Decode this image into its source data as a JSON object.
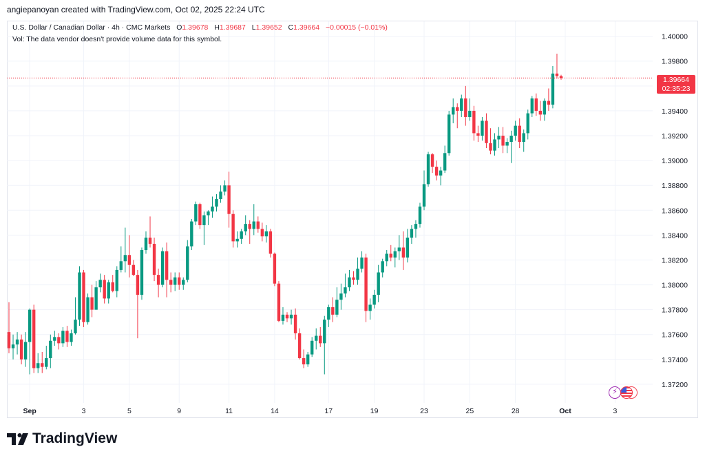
{
  "attribution": "angiepanoyan created with TradingView.com, Oct 02, 2025 22:24 UTC",
  "legend": {
    "symbol": "U.S. Dollar / Canadian Dollar · 4h · CMC Markets",
    "open_label": "O",
    "open": "1.39678",
    "high_label": "H",
    "high": "1.39687",
    "low_label": "L",
    "low": "1.39652",
    "close_label": "C",
    "close": "1.39664",
    "change": "−0.00015 (−0.01%)"
  },
  "volume_note": "Vol: The data vendor doesn't provide volume data for this symbol.",
  "price_badge": {
    "price": "1.39664",
    "countdown": "02:35:23"
  },
  "brand": {
    "logo_text": "TradingView"
  },
  "colors": {
    "up": "#089981",
    "down": "#f23645",
    "grid": "#f0f3fa",
    "last_price_line": "#f23645"
  },
  "icons": [
    "economic-event-icon",
    "us-flag-icon",
    "canada-flag-icon"
  ],
  "chart_data": {
    "type": "candlestick",
    "symbol": "USDCAD",
    "timeframe": "4h",
    "y_ticks": [
      "1.40000",
      "1.39800",
      "1.39600",
      "1.39400",
      "1.39200",
      "1.39000",
      "1.38800",
      "1.38600",
      "1.38400",
      "1.38200",
      "1.38000",
      "1.37800",
      "1.37600",
      "1.37400",
      "1.37200"
    ],
    "ylim": [
      1.3705,
      1.4012
    ],
    "x_ticks": [
      {
        "label": "Sep",
        "index": 5
      },
      {
        "label": "3",
        "index": 18
      },
      {
        "label": "5",
        "index": 29
      },
      {
        "label": "9",
        "index": 41
      },
      {
        "label": "11",
        "index": 53
      },
      {
        "label": "14",
        "index": 64
      },
      {
        "label": "17",
        "index": 77
      },
      {
        "label": "19",
        "index": 88
      },
      {
        "label": "23",
        "index": 100
      },
      {
        "label": "25",
        "index": 111
      },
      {
        "label": "28",
        "index": 122
      },
      {
        "label": "Oct",
        "index": 134
      },
      {
        "label": "3",
        "index": 146
      }
    ],
    "last_price": 1.39664,
    "candles": [
      [
        1.3762,
        1.3786,
        1.3745,
        1.3749
      ],
      [
        1.3749,
        1.376,
        1.374,
        1.3752
      ],
      [
        1.3752,
        1.3762,
        1.3744,
        1.3756
      ],
      [
        1.3756,
        1.376,
        1.3736,
        1.374
      ],
      [
        1.374,
        1.3762,
        1.3734,
        1.3754
      ],
      [
        1.3754,
        1.3781,
        1.3728,
        1.378
      ],
      [
        1.378,
        1.3784,
        1.3729,
        1.3733
      ],
      [
        1.3733,
        1.3745,
        1.3729,
        1.3737
      ],
      [
        1.3737,
        1.3746,
        1.3729,
        1.3734
      ],
      [
        1.3734,
        1.3751,
        1.3732,
        1.3741
      ],
      [
        1.3741,
        1.376,
        1.3733,
        1.3755
      ],
      [
        1.3755,
        1.3763,
        1.3751,
        1.3758
      ],
      [
        1.3758,
        1.3761,
        1.3748,
        1.3753
      ],
      [
        1.3753,
        1.3766,
        1.375,
        1.3763
      ],
      [
        1.3763,
        1.3767,
        1.375,
        1.3754
      ],
      [
        1.3754,
        1.3764,
        1.3751,
        1.3761
      ],
      [
        1.3761,
        1.379,
        1.376,
        1.3772
      ],
      [
        1.3772,
        1.3815,
        1.3767,
        1.381
      ],
      [
        1.381,
        1.3812,
        1.3766,
        1.377
      ],
      [
        1.377,
        1.3793,
        1.3768,
        1.379
      ],
      [
        1.379,
        1.38,
        1.3774,
        1.378
      ],
      [
        1.378,
        1.3803,
        1.378,
        1.3798
      ],
      [
        1.3798,
        1.3809,
        1.3794,
        1.3804
      ],
      [
        1.3804,
        1.3808,
        1.3785,
        1.3789
      ],
      [
        1.3789,
        1.3804,
        1.3785,
        1.3802
      ],
      [
        1.3802,
        1.3808,
        1.3794,
        1.3795
      ],
      [
        1.3795,
        1.3815,
        1.379,
        1.3812
      ],
      [
        1.3812,
        1.3831,
        1.381,
        1.3819
      ],
      [
        1.3819,
        1.3846,
        1.381,
        1.3824
      ],
      [
        1.3824,
        1.384,
        1.3806,
        1.3816
      ],
      [
        1.3816,
        1.382,
        1.3807,
        1.3808
      ],
      [
        1.3808,
        1.3812,
        1.3757,
        1.3792
      ],
      [
        1.3792,
        1.383,
        1.3788,
        1.3828
      ],
      [
        1.3828,
        1.3843,
        1.3825,
        1.3838
      ],
      [
        1.3838,
        1.3855,
        1.383,
        1.3833
      ],
      [
        1.3833,
        1.3838,
        1.3803,
        1.3808
      ],
      [
        1.3808,
        1.3813,
        1.379,
        1.38
      ],
      [
        1.38,
        1.383,
        1.3798,
        1.3827
      ],
      [
        1.3827,
        1.3834,
        1.379,
        1.3804
      ],
      [
        1.3804,
        1.381,
        1.3794,
        1.38
      ],
      [
        1.38,
        1.381,
        1.3795,
        1.3806
      ],
      [
        1.3806,
        1.381,
        1.3796,
        1.38
      ],
      [
        1.38,
        1.3806,
        1.3796,
        1.3804
      ],
      [
        1.3804,
        1.3836,
        1.3802,
        1.3831
      ],
      [
        1.3831,
        1.3853,
        1.3828,
        1.3851
      ],
      [
        1.3851,
        1.3867,
        1.3848,
        1.3865
      ],
      [
        1.3865,
        1.3866,
        1.3845,
        1.3848
      ],
      [
        1.3848,
        1.3859,
        1.3832,
        1.3856
      ],
      [
        1.3856,
        1.386,
        1.3848,
        1.3859
      ],
      [
        1.3859,
        1.3871,
        1.3854,
        1.3863
      ],
      [
        1.3863,
        1.3873,
        1.3859,
        1.3869
      ],
      [
        1.3869,
        1.388,
        1.3866,
        1.3875
      ],
      [
        1.3875,
        1.3884,
        1.3872,
        1.388
      ],
      [
        1.388,
        1.3891,
        1.3846,
        1.3857
      ],
      [
        1.3857,
        1.386,
        1.383,
        1.3835
      ],
      [
        1.3835,
        1.3843,
        1.383,
        1.3837
      ],
      [
        1.3837,
        1.3845,
        1.3833,
        1.3843
      ],
      [
        1.3843,
        1.3856,
        1.384,
        1.3849
      ],
      [
        1.3849,
        1.3852,
        1.3833,
        1.3845
      ],
      [
        1.3845,
        1.3865,
        1.384,
        1.3851
      ],
      [
        1.3851,
        1.3855,
        1.3842,
        1.3845
      ],
      [
        1.3845,
        1.385,
        1.3835,
        1.3839
      ],
      [
        1.3839,
        1.3848,
        1.3834,
        1.3843
      ],
      [
        1.3843,
        1.3845,
        1.3822,
        1.3825
      ],
      [
        1.3825,
        1.3826,
        1.3799,
        1.3801
      ],
      [
        1.3801,
        1.3803,
        1.377,
        1.3771
      ],
      [
        1.3771,
        1.3782,
        1.3768,
        1.3776
      ],
      [
        1.3776,
        1.3778,
        1.377,
        1.3773
      ],
      [
        1.3773,
        1.378,
        1.3768,
        1.3776
      ],
      [
        1.3776,
        1.3781,
        1.3756,
        1.3761
      ],
      [
        1.3761,
        1.3765,
        1.374,
        1.3741
      ],
      [
        1.3741,
        1.3748,
        1.3733,
        1.3736
      ],
      [
        1.3736,
        1.3746,
        1.3734,
        1.3744
      ],
      [
        1.3744,
        1.3758,
        1.3742,
        1.3755
      ],
      [
        1.3755,
        1.3765,
        1.3748,
        1.3759
      ],
      [
        1.3759,
        1.3766,
        1.375,
        1.3753
      ],
      [
        1.3753,
        1.3775,
        1.3728,
        1.3772
      ],
      [
        1.3772,
        1.3784,
        1.3766,
        1.3782
      ],
      [
        1.3782,
        1.379,
        1.377,
        1.3776
      ],
      [
        1.3776,
        1.3798,
        1.3774,
        1.3788
      ],
      [
        1.3788,
        1.3801,
        1.378,
        1.3793
      ],
      [
        1.3793,
        1.3809,
        1.379,
        1.3798
      ],
      [
        1.3798,
        1.3812,
        1.3795,
        1.3806
      ],
      [
        1.3806,
        1.3811,
        1.38,
        1.3804
      ],
      [
        1.3804,
        1.3822,
        1.38,
        1.3813
      ],
      [
        1.3813,
        1.3827,
        1.381,
        1.3822
      ],
      [
        1.3822,
        1.3825,
        1.377,
        1.3779
      ],
      [
        1.3779,
        1.3789,
        1.3772,
        1.3784
      ],
      [
        1.3784,
        1.3796,
        1.3781,
        1.3792
      ],
      [
        1.3792,
        1.3816,
        1.3786,
        1.381
      ],
      [
        1.381,
        1.3821,
        1.3806,
        1.3819
      ],
      [
        1.3819,
        1.3828,
        1.3815,
        1.3825
      ],
      [
        1.3825,
        1.3832,
        1.3819,
        1.3822
      ],
      [
        1.3822,
        1.383,
        1.3814,
        1.3827
      ],
      [
        1.3827,
        1.384,
        1.382,
        1.383
      ],
      [
        1.383,
        1.3843,
        1.3812,
        1.3822
      ],
      [
        1.3822,
        1.3845,
        1.3818,
        1.3838
      ],
      [
        1.3838,
        1.3848,
        1.3833,
        1.3845
      ],
      [
        1.3845,
        1.3852,
        1.3838,
        1.3849
      ],
      [
        1.3849,
        1.3866,
        1.3846,
        1.3863
      ],
      [
        1.3863,
        1.3892,
        1.386,
        1.3881
      ],
      [
        1.3881,
        1.3907,
        1.3879,
        1.3905
      ],
      [
        1.3905,
        1.3906,
        1.389,
        1.3895
      ],
      [
        1.3895,
        1.39,
        1.3884,
        1.3888
      ],
      [
        1.3888,
        1.3895,
        1.388,
        1.3892
      ],
      [
        1.3892,
        1.3912,
        1.389,
        1.3906
      ],
      [
        1.3906,
        1.394,
        1.3904,
        1.3937
      ],
      [
        1.3937,
        1.395,
        1.393,
        1.3943
      ],
      [
        1.3943,
        1.3946,
        1.3926,
        1.394
      ],
      [
        1.394,
        1.3953,
        1.3935,
        1.395
      ],
      [
        1.395,
        1.396,
        1.3928,
        1.3935
      ],
      [
        1.3935,
        1.395,
        1.3932,
        1.394
      ],
      [
        1.394,
        1.3944,
        1.3916,
        1.3922
      ],
      [
        1.3922,
        1.3928,
        1.3915,
        1.392
      ],
      [
        1.392,
        1.3935,
        1.3916,
        1.3932
      ],
      [
        1.3932,
        1.3938,
        1.391,
        1.3914
      ],
      [
        1.3914,
        1.3926,
        1.3905,
        1.3908
      ],
      [
        1.3908,
        1.3922,
        1.3904,
        1.3917
      ],
      [
        1.3917,
        1.3927,
        1.391,
        1.392
      ],
      [
        1.392,
        1.3927,
        1.3906,
        1.3912
      ],
      [
        1.3912,
        1.3918,
        1.3906,
        1.3915
      ],
      [
        1.3915,
        1.3924,
        1.3898,
        1.392
      ],
      [
        1.392,
        1.3932,
        1.3916,
        1.3928
      ],
      [
        1.3928,
        1.3934,
        1.391,
        1.3915
      ],
      [
        1.3915,
        1.3925,
        1.3907,
        1.3922
      ],
      [
        1.3922,
        1.3941,
        1.3917,
        1.3938
      ],
      [
        1.3938,
        1.3952,
        1.3935,
        1.395
      ],
      [
        1.395,
        1.3954,
        1.3936,
        1.394
      ],
      [
        1.394,
        1.3948,
        1.3932,
        1.3937
      ],
      [
        1.3937,
        1.395,
        1.3932,
        1.3948
      ],
      [
        1.3948,
        1.3958,
        1.394,
        1.3945
      ],
      [
        1.3945,
        1.3976,
        1.3942,
        1.397
      ],
      [
        1.397,
        1.3986,
        1.3966,
        1.3968
      ],
      [
        1.3968,
        1.3969,
        1.3965,
        1.39664
      ]
    ]
  }
}
